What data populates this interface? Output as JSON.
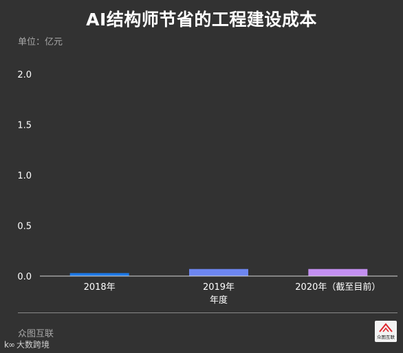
{
  "title": "AI结构师节省的工程建设成本",
  "unit_label": "单位：亿元",
  "source": "众图互联",
  "watermark": "大数跨境",
  "logo_text": "众图互联",
  "colors": {
    "background": "#323232",
    "bar_2018": "#1c78e6",
    "bar_2019": "#6d86f0",
    "bar_2020": "#c38ff0",
    "axis": "#d8d8d8"
  },
  "chart_data": {
    "type": "bar",
    "title": "AI结构师节省的工程建设成本",
    "ylabel": "单位：亿元",
    "xlabel": "年度",
    "categories": [
      "2018年",
      "2019年",
      "2020年（截至目前）"
    ],
    "values": [
      0.03,
      0.07,
      0.07
    ],
    "ylim": [
      0,
      2.0
    ],
    "yticks": [
      "0.0",
      "0.5",
      "1.0",
      "1.5",
      "2.0"
    ],
    "grid": false,
    "legend": "none"
  }
}
